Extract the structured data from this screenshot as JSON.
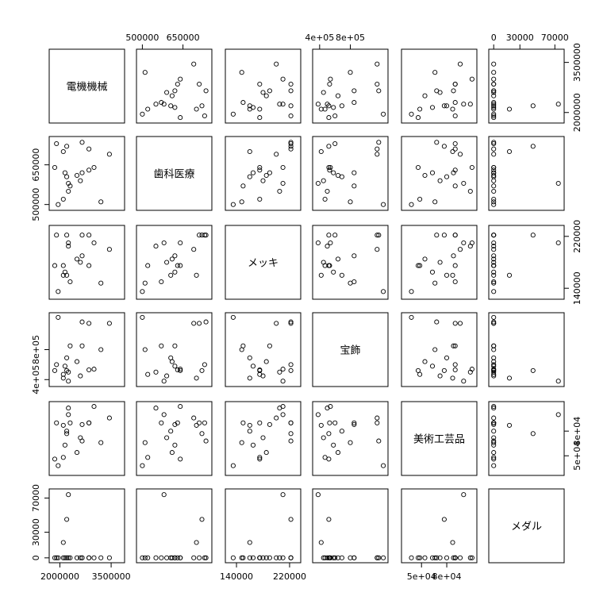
{
  "chart_data": {
    "type": "scatter-matrix",
    "variables": [
      {
        "name": "電機機械",
        "range": [
          1780000,
          3800000
        ],
        "ticks": [
          2000000,
          3500000
        ],
        "tick_labels": [
          "2000000",
          "3500000"
        ]
      },
      {
        "name": "歯科医療",
        "range": [
          490000,
          745000
        ],
        "ticks": [
          500000,
          650000
        ],
        "tick_labels": [
          "500000",
          "650000"
        ]
      },
      {
        "name": "メッキ",
        "range": [
          128000,
          232000
        ],
        "ticks": [
          140000,
          220000
        ],
        "tick_labels": [
          "140000",
          "220000"
        ]
      },
      {
        "name": "宝飾",
        "range": [
          350000,
          1250000
        ],
        "ticks": [
          400000,
          800000
        ],
        "tick_labels": [
          "4e+05",
          "8e+05"
        ]
      },
      {
        "name": "美術工芸品",
        "range": [
          30000,
          112000
        ],
        "ticks": [
          50000,
          80000
        ],
        "tick_labels": [
          "5e+04",
          "8e+04"
        ]
      },
      {
        "name": "メダル",
        "range": [
          -2000,
          77000
        ],
        "ticks": [
          0,
          30000,
          70000
        ],
        "tick_labels": [
          "0",
          "30000",
          "70000"
        ]
      }
    ],
    "observations": [
      [
        2250000,
        550000,
        205000,
        500000,
        108000,
        0
      ],
      [
        2100000,
        520000,
        175000,
        470000,
        48000,
        0
      ],
      [
        1850000,
        640000,
        175000,
        520000,
        46000,
        0
      ],
      [
        2850000,
        630000,
        175000,
        530000,
        90000,
        0
      ],
      [
        2600000,
        590000,
        180000,
        450000,
        72000,
        0
      ],
      [
        1900000,
        730000,
        222000,
        600000,
        90000,
        0
      ],
      [
        2850000,
        710000,
        222000,
        1150000,
        90000,
        0
      ],
      [
        2650000,
        620000,
        190000,
        850000,
        88000,
        0
      ],
      [
        2500000,
        610000,
        185000,
        640000,
        54000,
        0
      ],
      [
        3450000,
        690000,
        200000,
        1150000,
        96000,
        0
      ],
      [
        2150000,
        620000,
        165000,
        580000,
        63000,
        0
      ],
      [
        2200000,
        605000,
        160000,
        690000,
        80000,
        0
      ],
      [
        2300000,
        570000,
        150000,
        850000,
        90000,
        0
      ],
      [
        3000000,
        640000,
        210000,
        540000,
        110000,
        0
      ],
      [
        1950000,
        500000,
        135000,
        1230000,
        38000,
        0
      ],
      [
        2650000,
        735000,
        222000,
        1170000,
        68000,
        0
      ],
      [
        2100000,
        700000,
        160000,
        420000,
        87000,
        18000
      ],
      [
        2200000,
        720000,
        222000,
        520000,
        77000,
        45000
      ],
      [
        2250000,
        580000,
        210000,
        380000,
        100000,
        74000
      ],
      [
        3200000,
        510000,
        148000,
        800000,
        66000,
        0
      ]
    ],
    "title": "",
    "grid": false
  }
}
